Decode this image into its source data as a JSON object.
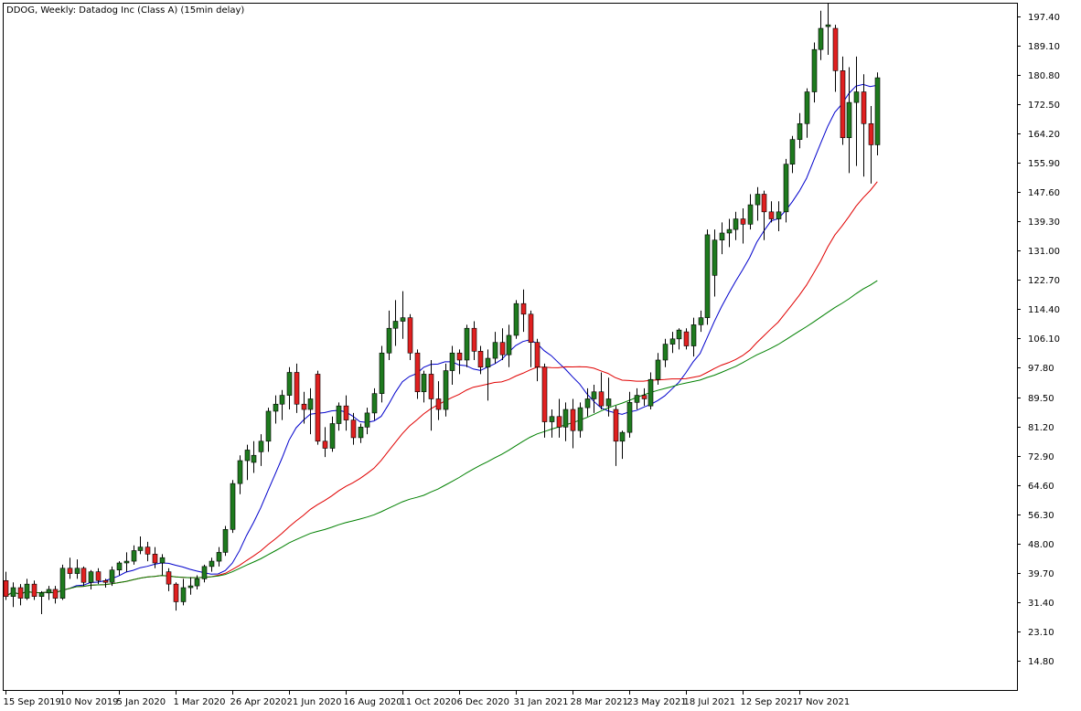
{
  "title": "DDOG, Weekly:  Datadog Inc (Class A) (15min delay)",
  "colors": {
    "background": "#ffffff",
    "frame": "#000000",
    "bull_candle": "#1e7a1e",
    "bear_candle": "#e02020",
    "wick": "#000000",
    "ma_fast": "#0000cc",
    "ma_mid": "#e00000",
    "ma_slow": "#008000"
  },
  "chart_data": {
    "type": "candlestick",
    "title": "DDOG, Weekly:  Datadog Inc (Class A) (15min delay)",
    "xlabel": "",
    "ylabel": "",
    "ylim": [
      6.5,
      201.0
    ],
    "grid": false,
    "y_ticks": [
      "197.40",
      "189.10",
      "180.80",
      "172.50",
      "164.20",
      "155.90",
      "147.60",
      "139.30",
      "131.00",
      "122.70",
      "114.40",
      "106.10",
      "97.80",
      "89.50",
      "81.20",
      "72.90",
      "64.60",
      "56.30",
      "48.00",
      "39.70",
      "31.40",
      "23.10",
      "14.80"
    ],
    "x_ticks": [
      {
        "label": "15 Sep 2019",
        "index": 0
      },
      {
        "label": "10 Nov 2019",
        "index": 8
      },
      {
        "label": "5 Jan 2020",
        "index": 16
      },
      {
        "label": "1 Mar 2020",
        "index": 24
      },
      {
        "label": "26 Apr 2020",
        "index": 32
      },
      {
        "label": "21 Jun 2020",
        "index": 40
      },
      {
        "label": "16 Aug 2020",
        "index": 48
      },
      {
        "label": "11 Oct 2020",
        "index": 56
      },
      {
        "label": "6 Dec 2020",
        "index": 64
      },
      {
        "label": "31 Jan 2021",
        "index": 72
      },
      {
        "label": "28 Mar 2021",
        "index": 80
      },
      {
        "label": "23 May 2021",
        "index": 88
      },
      {
        "label": "18 Jul 2021",
        "index": 96
      },
      {
        "label": "12 Sep 2021",
        "index": 104
      },
      {
        "label": "7 Nov 2021",
        "index": 112
      }
    ],
    "candles": [
      [
        37.5,
        40.0,
        32.0,
        33.0
      ],
      [
        33.0,
        37.0,
        30.0,
        35.5
      ],
      [
        35.5,
        36.5,
        30.5,
        32.5
      ],
      [
        32.5,
        38.0,
        32.0,
        36.5
      ],
      [
        36.5,
        37.5,
        32.0,
        33.0
      ],
      [
        33.0,
        34.5,
        28.0,
        34.0
      ],
      [
        34.0,
        36.0,
        32.0,
        35.0
      ],
      [
        35.0,
        36.0,
        31.0,
        32.5
      ],
      [
        32.5,
        42.0,
        32.0,
        41.0
      ],
      [
        41.0,
        44.0,
        38.0,
        39.5
      ],
      [
        39.5,
        43.5,
        38.0,
        41.0
      ],
      [
        41.0,
        41.5,
        36.0,
        37.0
      ],
      [
        37.0,
        40.5,
        35.0,
        40.0
      ],
      [
        40.0,
        41.0,
        36.5,
        37.5
      ],
      [
        37.5,
        38.0,
        35.5,
        37.0
      ],
      [
        37.0,
        41.5,
        36.0,
        40.5
      ],
      [
        40.5,
        43.0,
        39.0,
        42.5
      ],
      [
        42.5,
        45.5,
        40.0,
        43.0
      ],
      [
        43.0,
        47.5,
        42.0,
        46.0
      ],
      [
        46.0,
        50.0,
        45.0,
        47.0
      ],
      [
        47.0,
        48.5,
        43.0,
        45.0
      ],
      [
        45.0,
        47.0,
        41.0,
        42.5
      ],
      [
        42.5,
        45.0,
        39.0,
        44.0
      ],
      [
        40.0,
        41.0,
        34.5,
        36.5
      ],
      [
        36.5,
        37.0,
        29.0,
        31.5
      ],
      [
        31.5,
        38.0,
        30.5,
        35.5
      ],
      [
        35.5,
        38.5,
        33.5,
        36.0
      ],
      [
        36.0,
        39.0,
        35.0,
        38.0
      ],
      [
        38.0,
        42.0,
        37.0,
        41.5
      ],
      [
        41.5,
        44.0,
        40.0,
        43.0
      ],
      [
        43.0,
        47.0,
        41.5,
        45.5
      ],
      [
        45.5,
        53.0,
        44.5,
        52.0
      ],
      [
        52.0,
        66.0,
        51.0,
        65.0
      ],
      [
        65.0,
        73.0,
        62.0,
        71.5
      ],
      [
        71.5,
        76.0,
        66.0,
        74.5
      ],
      [
        71.0,
        77.0,
        68.0,
        73.0
      ],
      [
        74.0,
        79.0,
        70.0,
        77.0
      ],
      [
        77.0,
        86.5,
        74.0,
        85.5
      ],
      [
        85.5,
        90.0,
        82.0,
        87.5
      ],
      [
        87.5,
        91.5,
        83.0,
        90.0
      ],
      [
        90.0,
        98.0,
        86.0,
        96.5
      ],
      [
        96.5,
        99.0,
        85.0,
        87.5
      ],
      [
        87.5,
        91.0,
        82.0,
        86.0
      ],
      [
        86.0,
        92.0,
        79.0,
        89.0
      ],
      [
        96.0,
        97.0,
        76.0,
        77.0
      ],
      [
        77.0,
        81.0,
        72.5,
        75.0
      ],
      [
        75.0,
        84.0,
        74.0,
        82.0
      ],
      [
        82.0,
        88.0,
        80.0,
        87.0
      ],
      [
        87.0,
        90.0,
        80.0,
        83.0
      ],
      [
        83.0,
        85.0,
        76.0,
        78.0
      ],
      [
        78.0,
        82.0,
        76.5,
        81.0
      ],
      [
        81.0,
        86.5,
        79.0,
        85.0
      ],
      [
        85.0,
        92.0,
        83.0,
        90.5
      ],
      [
        90.5,
        104.0,
        88.0,
        102.0
      ],
      [
        102.0,
        114.0,
        100.0,
        109.0
      ],
      [
        109.0,
        117.0,
        104.0,
        111.0
      ],
      [
        111.0,
        119.5,
        106.0,
        112.0
      ],
      [
        112.0,
        113.0,
        100.0,
        102.0
      ],
      [
        102.0,
        103.0,
        89.0,
        91.0
      ],
      [
        91.0,
        97.0,
        88.0,
        96.0
      ],
      [
        96.0,
        100.0,
        80.0,
        89.0
      ],
      [
        89.0,
        94.0,
        83.0,
        86.0
      ],
      [
        86.0,
        99.0,
        84.0,
        97.0
      ],
      [
        97.0,
        104.0,
        93.0,
        102.0
      ],
      [
        102.0,
        103.0,
        96.0,
        100.0
      ],
      [
        100.0,
        110.0,
        98.0,
        109.0
      ],
      [
        109.0,
        111.0,
        100.0,
        102.5
      ],
      [
        102.5,
        104.0,
        96.0,
        98.0
      ],
      [
        98.0,
        103.0,
        88.5,
        100.5
      ],
      [
        100.5,
        108.0,
        99.0,
        105.0
      ],
      [
        105.0,
        109.0,
        100.0,
        101.5
      ],
      [
        101.5,
        110.0,
        98.0,
        107.0
      ],
      [
        107.0,
        117.0,
        106.0,
        116.0
      ],
      [
        116.0,
        120.0,
        108.0,
        113.0
      ],
      [
        113.0,
        114.0,
        98.0,
        105.0
      ],
      [
        105.0,
        106.0,
        94.0,
        98.0
      ],
      [
        98.0,
        99.0,
        78.0,
        82.5
      ],
      [
        82.5,
        86.0,
        78.0,
        84.0
      ],
      [
        84.0,
        89.0,
        78.0,
        81.0
      ],
      [
        81.0,
        88.0,
        77.0,
        86.0
      ],
      [
        86.0,
        89.0,
        75.0,
        80.0
      ],
      [
        80.0,
        88.0,
        78.0,
        86.5
      ],
      [
        86.5,
        92.0,
        84.0,
        89.0
      ],
      [
        89.0,
        93.0,
        85.0,
        91.0
      ],
      [
        91.0,
        96.5,
        86.0,
        87.0
      ],
      [
        87.0,
        95.0,
        84.0,
        89.0
      ],
      [
        86.0,
        87.0,
        70.0,
        77.0
      ],
      [
        77.0,
        80.0,
        72.0,
        79.5
      ],
      [
        79.5,
        91.0,
        78.0,
        88.0
      ],
      [
        88.0,
        92.0,
        86.0,
        90.0
      ],
      [
        90.0,
        92.0,
        87.0,
        89.0
      ],
      [
        87.0,
        96.5,
        86.0,
        94.5
      ],
      [
        94.5,
        102.0,
        93.0,
        100.0
      ],
      [
        100.0,
        106.0,
        98.0,
        104.5
      ],
      [
        104.5,
        108.0,
        102.0,
        106.0
      ],
      [
        106.0,
        109.0,
        103.0,
        108.5
      ],
      [
        108.0,
        109.0,
        103.0,
        104.0
      ],
      [
        104.0,
        112.0,
        101.0,
        110.0
      ],
      [
        110.0,
        114.0,
        108.0,
        112.0
      ],
      [
        112.0,
        137.0,
        110.0,
        135.5
      ],
      [
        124.0,
        137.0,
        118.0,
        134.0
      ],
      [
        134.0,
        139.0,
        130.0,
        136.0
      ],
      [
        136.0,
        140.0,
        132.0,
        137.0
      ],
      [
        137.0,
        142.0,
        134.0,
        140.0
      ],
      [
        140.0,
        143.0,
        133.0,
        138.5
      ],
      [
        138.5,
        147.0,
        137.0,
        144.0
      ],
      [
        144.0,
        149.0,
        139.5,
        147.0
      ],
      [
        147.0,
        148.0,
        134.0,
        142.0
      ],
      [
        142.0,
        145.0,
        139.0,
        140.0
      ],
      [
        140.0,
        145.0,
        136.5,
        142.0
      ],
      [
        142.0,
        157.0,
        139.0,
        155.5
      ],
      [
        155.5,
        163.5,
        153.0,
        162.5
      ],
      [
        162.5,
        170.0,
        160.0,
        167.0
      ],
      [
        167.0,
        177.0,
        163.0,
        176.0
      ],
      [
        176.0,
        190.0,
        173.0,
        188.0
      ],
      [
        188.0,
        199.0,
        185.0,
        194.0
      ],
      [
        194.5,
        201.0,
        186.5,
        195.0
      ],
      [
        194.0,
        195.0,
        176.0,
        182.0
      ],
      [
        182.0,
        186.0,
        161.0,
        163.0
      ],
      [
        163.0,
        183.0,
        153.0,
        173.0
      ],
      [
        173.0,
        186.0,
        155.0,
        176.0
      ],
      [
        176.0,
        181.0,
        152.0,
        167.0
      ],
      [
        167.0,
        172.0,
        150.0,
        161.0
      ],
      [
        161.0,
        181.5,
        158.0,
        180.0
      ]
    ]
  }
}
